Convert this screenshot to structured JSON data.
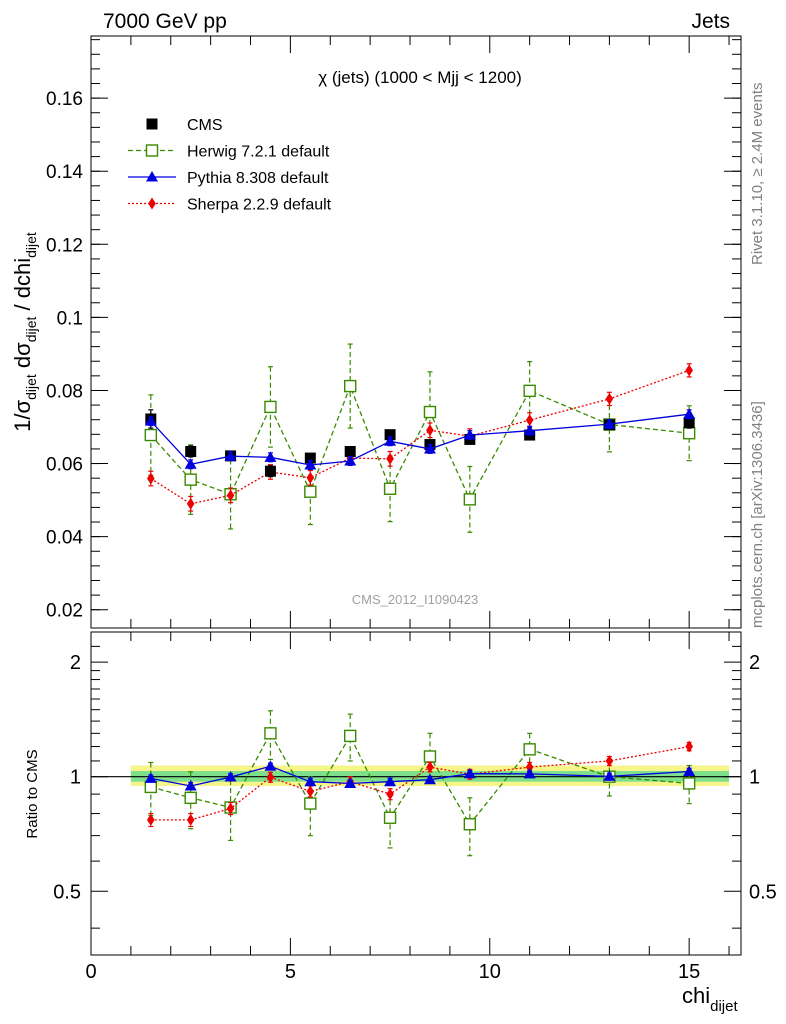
{
  "header": {
    "left": "7000 GeV pp",
    "right": "Jets"
  },
  "side_labels": {
    "top": "Rivet 3.1.10, ≥ 2.4M events",
    "bottom": "mcplots.cern.ch [arXiv:1306.3436]"
  },
  "watermark": "CMS_2012_I1090423",
  "colors": {
    "cms": "#000000",
    "herwig": "#3a8a00",
    "pythia": "#0000dd",
    "sherpa": "#ee0000",
    "band_inner": "#7fe08c",
    "band_outer": "#f5f58a"
  },
  "chart_data": [
    {
      "type": "scatter",
      "title": "χ (jets) (1000 < Mjj < 1200)",
      "xlabel": "chi_dijet",
      "ylabel": "1/σ_dijet dσ_dijet / dchi_dijet",
      "xlim": [
        0,
        16.3
      ],
      "ylim": [
        0.015,
        0.177
      ],
      "yticks": [
        0.02,
        0.04,
        0.06,
        0.08,
        0.1,
        0.12,
        0.14,
        0.16
      ],
      "ytick_labels": [
        "0.02",
        "0.04",
        "0.06",
        "0.08",
        "0.1",
        "0.12",
        "0.14",
        "0.16"
      ],
      "legend_position": "top-left",
      "x": [
        1.5,
        2.5,
        3.5,
        4.5,
        5.5,
        6.5,
        7.5,
        8.5,
        9.5,
        11,
        13,
        15
      ],
      "series": [
        {
          "name": "CMS",
          "style": "marker",
          "values": [
            0.0722,
            0.0633,
            0.0621,
            0.0579,
            0.0615,
            0.0633,
            0.0679,
            0.0652,
            0.0666,
            0.0678,
            0.0706,
            0.0712
          ],
          "errors": [
            0.0025,
            0.0015,
            0.0012,
            0.0015,
            0.0012,
            0.0012,
            0.0012,
            0.0012,
            0.0012,
            0.0012,
            0.0012,
            0.0015
          ]
        },
        {
          "name": "Herwig 7.2.1 default",
          "style": "dashed",
          "values": [
            0.0678,
            0.0556,
            0.0516,
            0.0755,
            0.0523,
            0.0812,
            0.0531,
            0.0741,
            0.0502,
            0.0799,
            0.0707,
            0.0683
          ],
          "errors": [
            0.011,
            0.0095,
            0.0095,
            0.011,
            0.009,
            0.0115,
            0.009,
            0.011,
            0.009,
            0.008,
            0.0075,
            0.0075
          ]
        },
        {
          "name": "Pythia 8.308 default",
          "style": "solid",
          "values": [
            0.0716,
            0.0598,
            0.062,
            0.0617,
            0.0596,
            0.0607,
            0.0661,
            0.064,
            0.0678,
            0.069,
            0.0708,
            0.0735
          ],
          "errors": [
            0.0012,
            0.0012,
            0.0012,
            0.0012,
            0.0012,
            0.0012,
            0.0012,
            0.0012,
            0.0012,
            0.0012,
            0.0012,
            0.0012
          ]
        },
        {
          "name": "Sherpa 2.2.9 default",
          "style": "dotted",
          "values": [
            0.0559,
            0.049,
            0.0513,
            0.0577,
            0.0561,
            0.0615,
            0.0613,
            0.0691,
            0.0675,
            0.0719,
            0.0777,
            0.0855
          ],
          "errors": [
            0.002,
            0.002,
            0.002,
            0.002,
            0.002,
            0.002,
            0.002,
            0.002,
            0.002,
            0.002,
            0.0018,
            0.0018
          ]
        }
      ]
    },
    {
      "type": "scatter",
      "xlabel": "chi_dijet",
      "ylabel": "Ratio to CMS",
      "xlim": [
        0,
        16.3
      ],
      "ylim": [
        0.34,
        2.4
      ],
      "y_scale": "log",
      "yticks": [
        0.5,
        1,
        2
      ],
      "ytick_labels": [
        "0.5",
        "1",
        "2"
      ],
      "xticks": [
        0,
        5,
        10,
        15
      ],
      "xtick_labels": [
        "0",
        "5",
        "10",
        "15"
      ],
      "reference_band": {
        "x_range": [
          1,
          16
        ],
        "inner": [
          0.97,
          1.035
        ],
        "outer": [
          0.945,
          1.07
        ]
      },
      "x": [
        1.5,
        2.5,
        3.5,
        4.5,
        5.5,
        6.5,
        7.5,
        8.5,
        9.5,
        11,
        13,
        15
      ],
      "series": [
        {
          "name": "Herwig 7.2.1 default",
          "style": "dashed",
          "values": [
            0.94,
            0.88,
            0.83,
            1.3,
            0.85,
            1.28,
            0.78,
            1.13,
            0.75,
            1.18,
            1.0,
            0.96
          ],
          "errors": [
            0.15,
            0.15,
            0.15,
            0.19,
            0.15,
            0.18,
            0.13,
            0.17,
            0.13,
            0.12,
            0.11,
            0.11
          ]
        },
        {
          "name": "Pythia 8.308 default",
          "style": "solid",
          "values": [
            0.99,
            0.945,
            0.998,
            1.065,
            0.97,
            0.96,
            0.97,
            0.982,
            1.018,
            1.017,
            1.002,
            1.032
          ],
          "errors": [
            0.02,
            0.02,
            0.02,
            0.02,
            0.02,
            0.02,
            0.02,
            0.02,
            0.02,
            0.02,
            0.02,
            0.02
          ]
        },
        {
          "name": "Sherpa 2.2.9 default",
          "style": "dotted",
          "values": [
            0.77,
            0.77,
            0.825,
            0.997,
            0.915,
            0.97,
            0.9,
            1.06,
            1.015,
            1.06,
            1.1,
            1.2
          ],
          "errors": [
            0.03,
            0.03,
            0.03,
            0.03,
            0.03,
            0.03,
            0.03,
            0.03,
            0.03,
            0.03,
            0.03,
            0.03
          ]
        }
      ]
    }
  ]
}
